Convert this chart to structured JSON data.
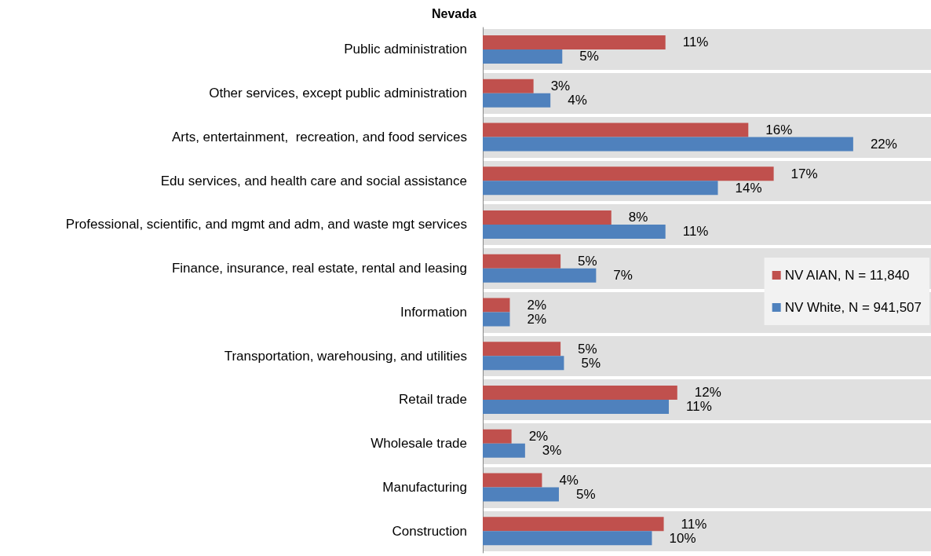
{
  "chart_data": {
    "type": "bar",
    "orientation": "horizontal",
    "title": "Nevada",
    "categories": [
      "Public administration",
      "Other services, except public administration",
      "Arts, entertainment,  recreation, and food services",
      "Edu services, and health care and social assistance",
      "Professional, scientific, and mgmt and adm, and waste mgt services",
      "Finance, insurance, real estate, rental and leasing",
      "Information",
      "Transportation, warehousing, and utilities",
      "Retail trade",
      "Wholesale trade",
      "Manufacturing",
      "Construction"
    ],
    "series": [
      {
        "name": "NV AIAN, N = 11,840",
        "color": "#c0504d",
        "values": [
          10.8,
          3.0,
          15.7,
          17.2,
          7.6,
          4.6,
          1.6,
          4.6,
          11.5,
          1.7,
          3.5,
          10.7
        ],
        "value_labels": [
          "11%",
          "3%",
          "16%",
          "17%",
          "8%",
          "5%",
          "2%",
          "5%",
          "12%",
          "2%",
          "4%",
          "11%"
        ]
      },
      {
        "name": "NV White, N = 941,507",
        "color": "#4f81bd",
        "values": [
          4.7,
          4.0,
          21.9,
          13.9,
          10.8,
          6.7,
          1.6,
          4.8,
          11.0,
          2.5,
          4.5,
          10.0
        ],
        "value_labels": [
          "5%",
          "4%",
          "22%",
          "14%",
          "11%",
          "7%",
          "2%",
          "5%",
          "11%",
          "3%",
          "5%",
          "10%"
        ]
      }
    ],
    "xlim": [
      0,
      26.5
    ],
    "tick_labels": "y",
    "grid": true,
    "legend": "right"
  }
}
